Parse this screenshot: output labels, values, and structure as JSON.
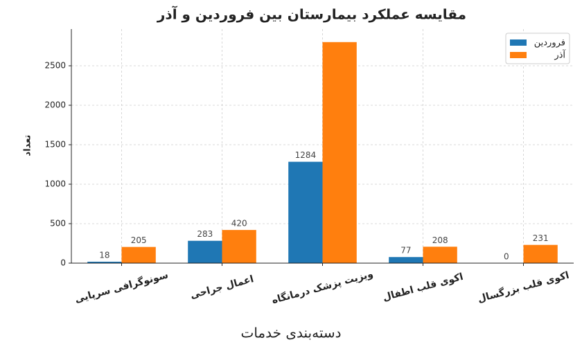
{
  "chart_data": {
    "type": "bar",
    "title": "مقایسه عملکرد بیمارستان بین فروردین و آذر",
    "x_label": "دسته‌بندی خدمات",
    "y_label": "تعداد",
    "categories": [
      "سونوگرافی سرپایی",
      "اعمال جراحی",
      "ویزیت پزشک درمانگاه",
      "اکوی قلب اطفال",
      "اکوی قلب بزرگسال"
    ],
    "series": [
      {
        "name": "فروردین",
        "color": "#1f77b4",
        "values": [
          18,
          283,
          1284,
          77,
          0
        ],
        "value_labels": [
          "18",
          "283",
          "1284",
          "77",
          "0"
        ]
      },
      {
        "name": "آذر",
        "color": "#ff7f0e",
        "values": [
          205,
          420,
          2800,
          208,
          231
        ],
        "value_labels": [
          "205",
          "420",
          null,
          "208",
          "231"
        ]
      }
    ],
    "ylim": [
      0,
      2965
    ],
    "yticks": [
      0,
      500,
      1000,
      1500,
      2000,
      2500
    ],
    "grid": true,
    "legend": "upper right"
  }
}
